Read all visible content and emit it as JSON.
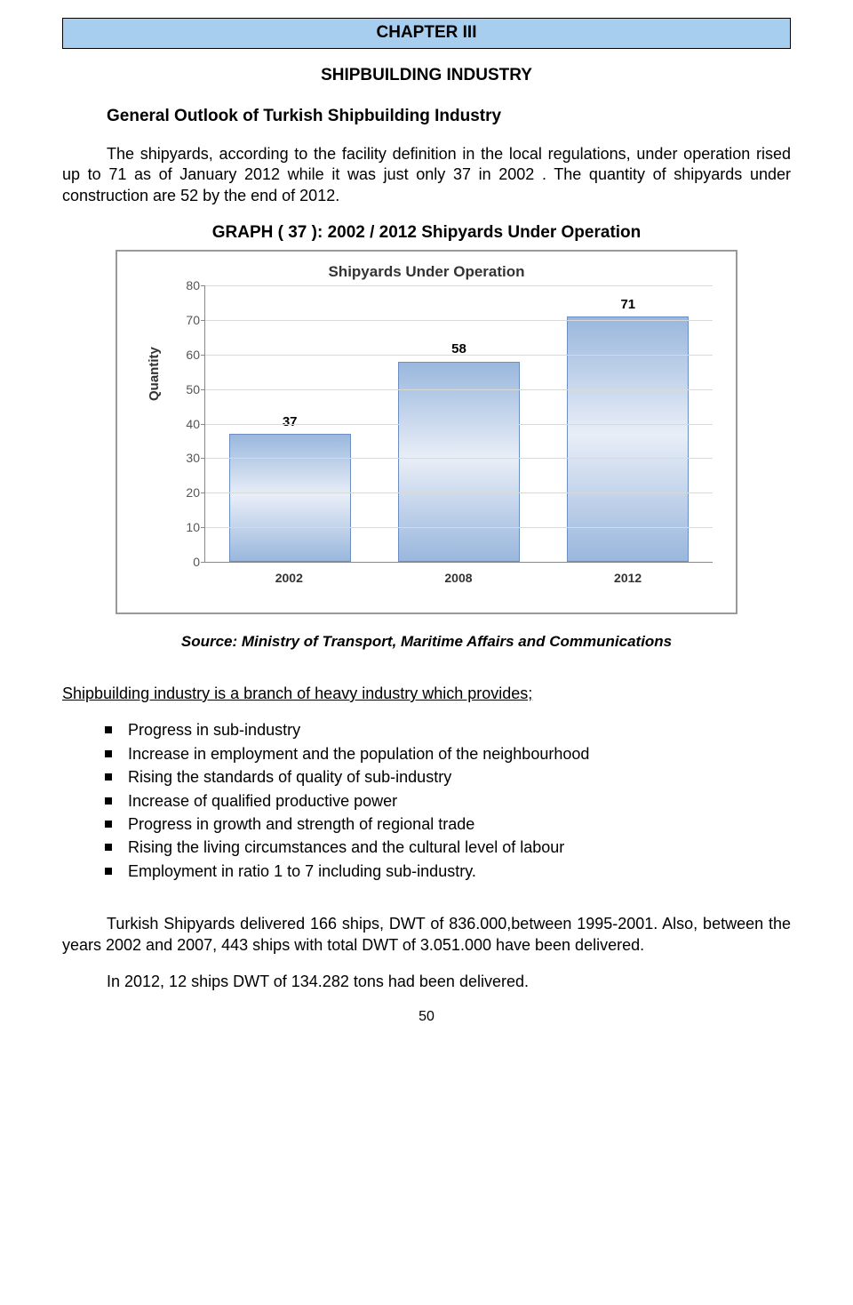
{
  "chapter_banner": "CHAPTER III",
  "subtitle": "SHIPBUILDING INDUSTRY",
  "section_heading": "General Outlook of Turkish Shipbuilding Industry",
  "para1": "The shipyards, according to the facility definition in the local regulations, under operation rised up to 71 as of January 2012 while it was just only 37 in 2002 . The quantity of  shipyards under construction are 52 by the end of 2012.",
  "graph_title": "GRAPH ( 37 ):  2002 / 2012 Shipyards Under Operation",
  "chart": {
    "title": "Shipyards Under Operation",
    "y_label": "Quantity",
    "y_max": 80,
    "y_ticks": [
      0,
      10,
      20,
      30,
      40,
      50,
      60,
      70,
      80
    ],
    "categories": [
      "2002",
      "2008",
      "2012"
    ],
    "values": [
      37,
      58,
      71
    ],
    "bar_border": "#6b8fc3",
    "grid_color": "#d9d9d9",
    "axis_color": "#888888"
  },
  "source": "Source: Ministry of Transport, Maritime Affairs and Communications",
  "list_heading": "Shipbuilding industry is a branch of heavy industry which provides;",
  "bullets": [
    "Progress in sub-industry",
    "Increase in employment and the population of the neighbourhood",
    "Rising the standards of quality of sub-industry",
    "Increase of qualified productive power",
    "Progress in growth and strength of regional trade",
    "Rising the living circumstances and the cultural level of labour",
    "Employment in ratio 1 to 7 including sub-industry."
  ],
  "para2": "Turkish Shipyards delivered 166 ships, DWT of 836.000,between 1995-2001. Also,  between the years 2002 and 2007, 443 ships with total DWT of 3.051.000 have been delivered.",
  "para3": "In 2012, 12 ships DWT of 134.282  tons had been delivered.",
  "page_no": "50"
}
